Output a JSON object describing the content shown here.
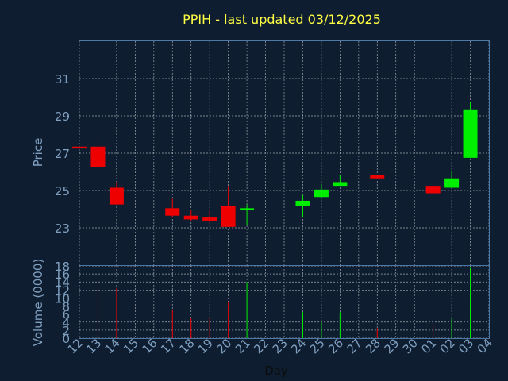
{
  "colors": {
    "background": "#0e1d30",
    "up": "#00ee00",
    "down": "#ee0000",
    "title": "#ffff44",
    "axis_text": "#7f9fbf",
    "frame": "#4c78a8"
  },
  "chart_data": [
    {
      "type": "candlestick",
      "title": "PPIH - last updated 03/12/2025",
      "ylabel": "Price",
      "ylim": [
        21.0,
        33.0
      ],
      "yticks": [
        "23",
        "25",
        "27",
        "29",
        "31"
      ],
      "ytick_values": [
        23,
        25,
        27,
        29,
        31
      ],
      "grid": true,
      "days": [
        "12",
        "13",
        "14",
        "15",
        "16",
        "17",
        "18",
        "19",
        "20",
        "21",
        "22",
        "23",
        "24",
        "25",
        "26",
        "27",
        "28",
        "29",
        "30",
        "01",
        "02",
        "03",
        "04"
      ],
      "candles": [
        {
          "day": "12",
          "open": 27.35,
          "high": 27.35,
          "low": 27.25,
          "close": 27.25
        },
        {
          "day": "13",
          "open": 27.35,
          "high": 27.75,
          "low": 26.05,
          "close": 26.25
        },
        {
          "day": "14",
          "open": 25.15,
          "high": 25.45,
          "low": 24.25,
          "close": 24.25
        },
        {
          "day": "17",
          "open": 24.05,
          "high": 24.55,
          "low": 23.55,
          "close": 23.65
        },
        {
          "day": "18",
          "open": 23.65,
          "high": 23.95,
          "low": 23.35,
          "close": 23.45
        },
        {
          "day": "19",
          "open": 23.55,
          "high": 23.95,
          "low": 23.25,
          "close": 23.35
        },
        {
          "day": "20",
          "open": 24.15,
          "high": 25.25,
          "low": 23.05,
          "close": 23.05
        },
        {
          "day": "21",
          "open": 23.95,
          "high": 24.25,
          "low": 23.15,
          "close": 24.05
        },
        {
          "day": "24",
          "open": 24.15,
          "high": 24.75,
          "low": 23.55,
          "close": 24.45
        },
        {
          "day": "25",
          "open": 24.65,
          "high": 25.35,
          "low": 24.55,
          "close": 25.05
        },
        {
          "day": "26",
          "open": 25.25,
          "high": 25.85,
          "low": 25.25,
          "close": 25.45
        },
        {
          "day": "28",
          "open": 25.85,
          "high": 25.85,
          "low": 25.65,
          "close": 25.65
        },
        {
          "day": "01",
          "open": 25.25,
          "high": 25.35,
          "low": 24.75,
          "close": 24.85
        },
        {
          "day": "02",
          "open": 25.15,
          "high": 26.05,
          "low": 25.15,
          "close": 25.65
        },
        {
          "day": "03",
          "open": 26.75,
          "high": 29.75,
          "low": 26.75,
          "close": 29.35
        }
      ]
    },
    {
      "type": "bar",
      "ylabel": "Volume (0000)",
      "xlabel": "Day",
      "ylim": [
        0,
        18
      ],
      "yticks": [
        "0",
        "2",
        "4",
        "6",
        "8",
        "10",
        "12",
        "14",
        "16",
        "18"
      ],
      "grid": true,
      "bars": [
        {
          "day": "13",
          "value": 13.5,
          "direction": "down"
        },
        {
          "day": "14",
          "value": 12.5,
          "direction": "down"
        },
        {
          "day": "17",
          "value": 7.0,
          "direction": "down"
        },
        {
          "day": "18",
          "value": 5.0,
          "direction": "down"
        },
        {
          "day": "19",
          "value": 5.0,
          "direction": "down"
        },
        {
          "day": "20",
          "value": 9.0,
          "direction": "down"
        },
        {
          "day": "21",
          "value": 14.0,
          "direction": "up"
        },
        {
          "day": "24",
          "value": 6.5,
          "direction": "up"
        },
        {
          "day": "25",
          "value": 4.0,
          "direction": "up"
        },
        {
          "day": "26",
          "value": 6.5,
          "direction": "up"
        },
        {
          "day": "28",
          "value": 2.5,
          "direction": "down"
        },
        {
          "day": "01",
          "value": 3.5,
          "direction": "down"
        },
        {
          "day": "02",
          "value": 5.0,
          "direction": "up"
        },
        {
          "day": "03",
          "value": 17.5,
          "direction": "up"
        }
      ]
    }
  ]
}
